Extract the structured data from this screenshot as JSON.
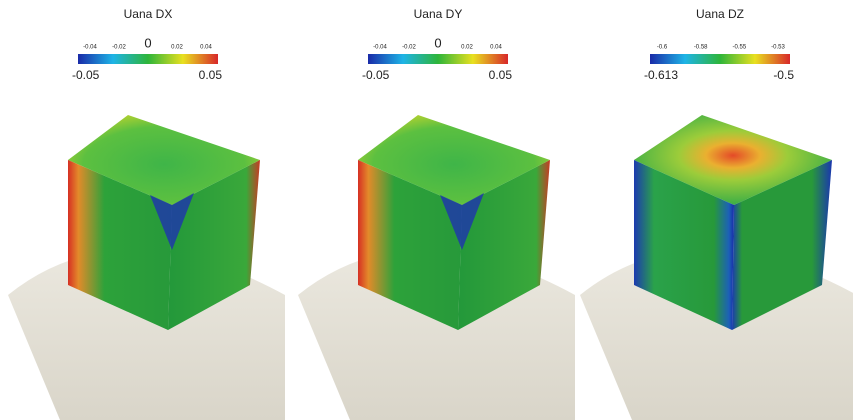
{
  "panels": [
    {
      "title": "Uana DX",
      "ticks": [
        "-0.04",
        "-0.02",
        "0",
        "0.02",
        "0.04"
      ],
      "min": "-0.05",
      "max": "0.05"
    },
    {
      "title": "Uana DY",
      "ticks": [
        "-0.04",
        "-0.02",
        "0",
        "0.02",
        "0.04"
      ],
      "min": "-0.05",
      "max": "0.05"
    },
    {
      "title": "Uana DZ",
      "ticks": [
        "-0.6",
        "-0.58",
        "-0.55",
        "-0.53"
      ],
      "min": "-0.613",
      "max": "-0.5"
    }
  ]
}
